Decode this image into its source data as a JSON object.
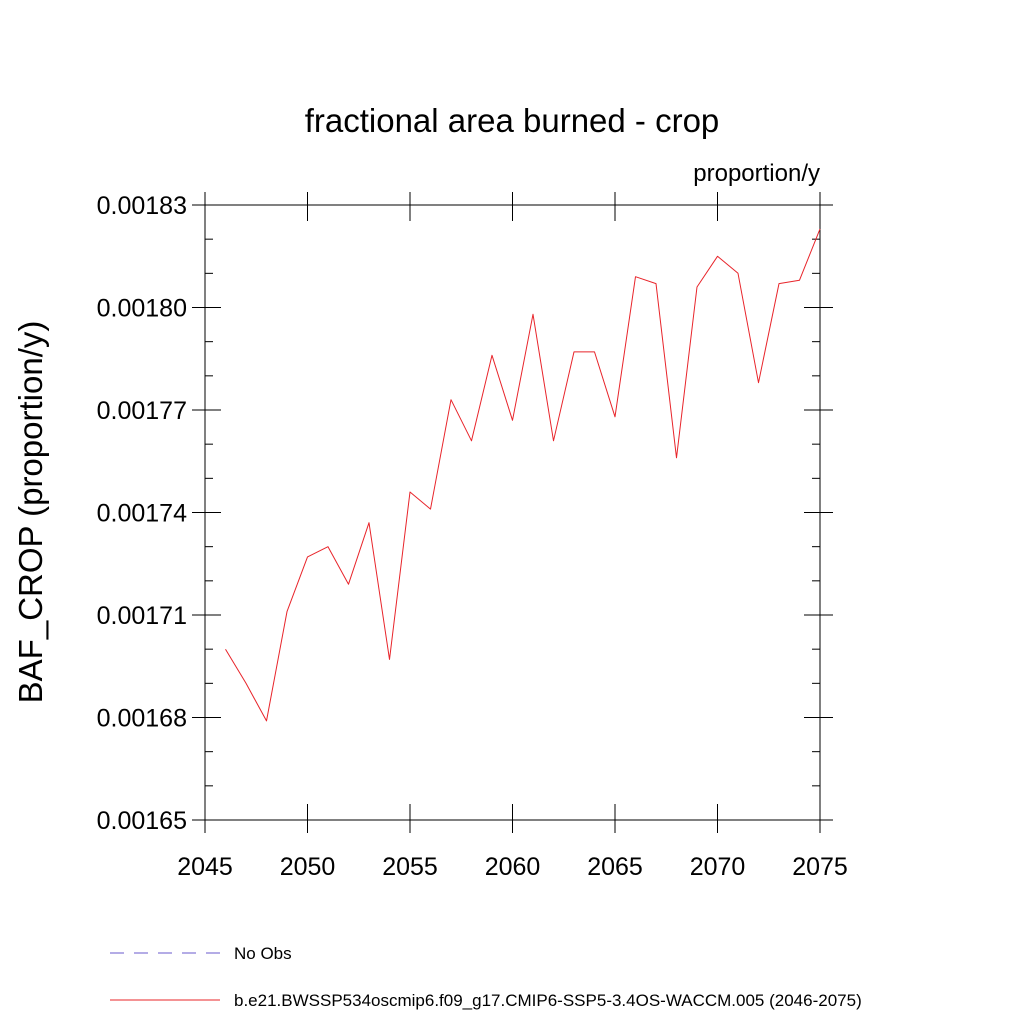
{
  "chart_data": {
    "type": "line",
    "title": "fractional area burned - crop",
    "units_label": "proportion/y",
    "ylabel": "BAF_CROP  (proportion/y)",
    "xlabel": "",
    "xlim": [
      2045,
      2075
    ],
    "ylim": [
      0.00165,
      0.00183
    ],
    "x_ticks": [
      "2045",
      "2050",
      "2055",
      "2060",
      "2065",
      "2070",
      "2075"
    ],
    "x_tick_values": [
      2045,
      2050,
      2055,
      2060,
      2065,
      2070,
      2075
    ],
    "y_ticks": [
      "0.00165",
      "0.00168",
      "0.00171",
      "0.00174",
      "0.00177",
      "0.00180",
      "0.00183"
    ],
    "y_tick_values": [
      0.00165,
      0.00168,
      0.00171,
      0.00174,
      0.00177,
      0.0018,
      0.00183
    ],
    "grid": false,
    "legend_position": "bottom",
    "series": [
      {
        "name": "b.e21.BWSSP534oscmip6.f09_g17.CMIP6-SSP5-3.4OS-WACCM.005 (2046-2075)",
        "color": "#e8242a",
        "x": [
          2046,
          2047,
          2048,
          2049,
          2050,
          2051,
          2052,
          2053,
          2054,
          2055,
          2056,
          2057,
          2058,
          2059,
          2060,
          2061,
          2062,
          2063,
          2064,
          2065,
          2066,
          2067,
          2068,
          2069,
          2070,
          2071,
          2072,
          2073,
          2074,
          2075
        ],
        "y": [
          0.0017,
          0.00169,
          0.001679,
          0.001711,
          0.001727,
          0.00173,
          0.001719,
          0.001737,
          0.001697,
          0.001746,
          0.001741,
          0.001773,
          0.001761,
          0.001786,
          0.001767,
          0.001798,
          0.001761,
          0.001787,
          0.001787,
          0.001768,
          0.001809,
          0.001807,
          0.001756,
          0.001806,
          0.001815,
          0.00181,
          0.001778,
          0.001807,
          0.001808,
          0.001823
        ]
      }
    ],
    "legend": [
      {
        "label": "No Obs",
        "color": "#6a5acd",
        "dash": "dashed"
      },
      {
        "label": "b.e21.BWSSP534oscmip6.f09_g17.CMIP6-SSP5-3.4OS-WACCM.005 (2046-2075)",
        "color": "#e8242a",
        "dash": "solid"
      }
    ]
  }
}
